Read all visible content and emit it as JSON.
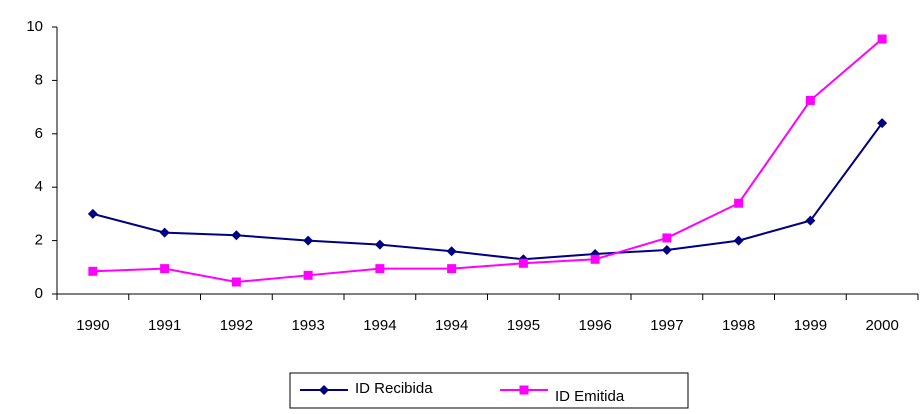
{
  "chart_data": {
    "type": "line",
    "categories": [
      "1990",
      "1991",
      "1992",
      "1993",
      "1994",
      "1994",
      "1995",
      "1996",
      "1997",
      "1998",
      "1999",
      "2000"
    ],
    "series": [
      {
        "name": "ID Recibida",
        "color": "#000080",
        "marker": "diamond",
        "values": [
          3.0,
          2.3,
          2.2,
          2.0,
          1.85,
          1.6,
          1.3,
          1.5,
          1.65,
          2.0,
          2.75,
          6.4
        ]
      },
      {
        "name": "ID Emitida",
        "color": "#ff00ff",
        "marker": "square",
        "values": [
          0.85,
          0.95,
          0.45,
          0.7,
          0.95,
          0.95,
          1.15,
          1.3,
          2.1,
          3.4,
          7.25,
          9.55
        ]
      }
    ],
    "ylim": [
      0,
      10
    ],
    "yticks": [
      0,
      2,
      4,
      6,
      8,
      10
    ],
    "grid": false,
    "legend": "bottom"
  }
}
